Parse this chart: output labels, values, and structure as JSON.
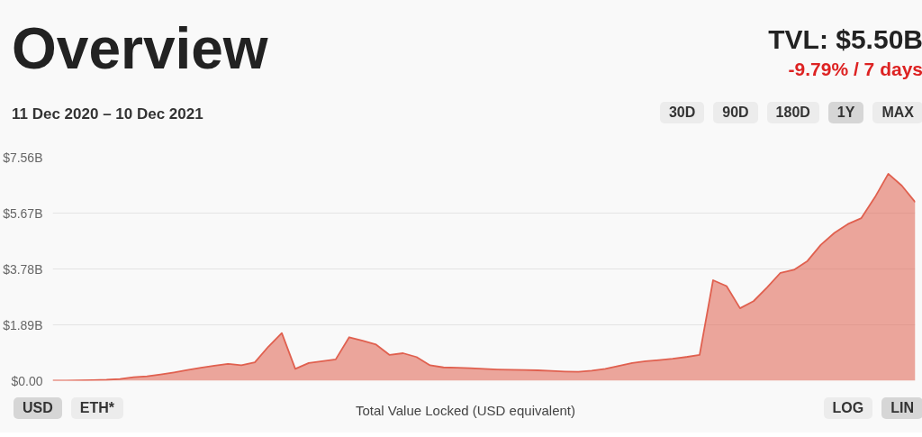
{
  "chart_data": {
    "type": "area",
    "title": "Overview",
    "subtitle": "11 Dec 2020 – 10 Dec 2021",
    "xlabel": "Total Value Locked (USD equivalent)",
    "annotations": [
      "TVL: $5.50B",
      "-9.79% / 7 days",
      "30D",
      "90D",
      "180D",
      "1Y",
      "MAX",
      "USD",
      "ETH*",
      "LOG",
      "LIN"
    ],
    "categories": [
      null,
      null,
      null,
      null,
      null,
      null,
      null,
      null,
      null,
      null,
      null,
      null,
      null,
      null,
      null,
      null,
      null,
      null,
      null,
      null,
      null,
      null,
      null,
      null,
      null,
      null,
      null,
      null,
      null,
      null,
      null,
      null,
      null,
      null,
      null,
      null,
      null,
      null,
      null,
      null,
      null,
      null,
      null,
      null,
      null,
      null,
      null,
      null,
      null,
      null,
      null,
      null,
      null,
      null,
      null,
      null,
      null,
      null,
      null,
      null,
      null,
      null,
      null,
      null,
      null
    ],
    "series": [
      {
        "color": "#e0604f",
        "values": [
          0,
          0,
          0.01,
          0.02,
          0.03,
          0.06,
          0.12,
          0.15,
          0.21,
          0.28,
          0.36,
          0.44,
          0.51,
          0.57,
          0.52,
          0.62,
          1.15,
          1.61,
          0.4,
          0.6,
          0.66,
          0.72,
          1.47,
          1.35,
          1.22,
          0.87,
          0.93,
          0.8,
          0.52,
          0.45,
          0.44,
          0.42,
          0.4,
          0.38,
          0.37,
          0.36,
          0.35,
          0.33,
          0.31,
          0.3,
          0.34,
          0.4,
          0.5,
          0.6,
          0.66,
          0.7,
          0.74,
          0.8,
          0.87,
          3.4,
          3.2,
          2.45,
          2.69,
          3.15,
          3.65,
          3.75,
          4.05,
          4.6,
          5.0,
          5.3,
          5.5,
          6.2,
          7.0,
          6.6,
          6.04
        ]
      }
    ],
    "ylim": [
      0,
      7.56
    ],
    "yticks": [
      {
        "value": 0,
        "label": "$0.00"
      },
      {
        "value": 1.89,
        "label": "$1.89B"
      },
      {
        "value": 3.78,
        "label": "$3.78B"
      },
      {
        "value": 5.67,
        "label": "$5.67B"
      },
      {
        "value": 7.56,
        "label": "$7.56B"
      }
    ],
    "grid": "y",
    "tick_labels": "y"
  }
}
